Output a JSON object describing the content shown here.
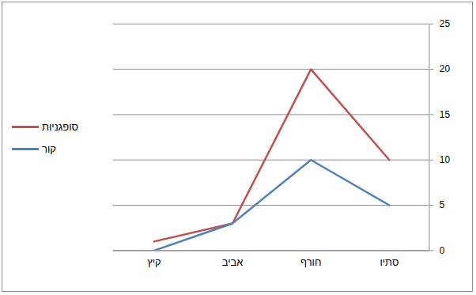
{
  "chart_data": {
    "type": "line",
    "categories": [
      "קיץ",
      "אביב",
      "חורף",
      "סתיו"
    ],
    "series": [
      {
        "name": "סופגניות",
        "color": "#c0504d",
        "values": [
          1,
          3,
          20,
          10
        ]
      },
      {
        "name": "קור",
        "color": "#4f81bd",
        "values": [
          0,
          3,
          10,
          5
        ]
      }
    ],
    "ylim": [
      0,
      25
    ],
    "yticks": [
      0,
      5,
      10,
      15,
      20,
      25
    ],
    "grid": true,
    "legend": "left"
  }
}
